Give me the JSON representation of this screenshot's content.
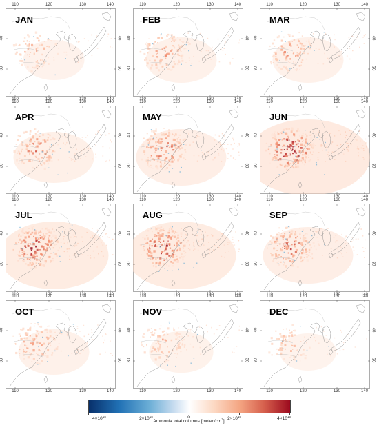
{
  "panels": [
    {
      "month": "JAN",
      "intensity": 0.35
    },
    {
      "month": "FEB",
      "intensity": 0.45
    },
    {
      "month": "MAR",
      "intensity": 0.45
    },
    {
      "month": "APR",
      "intensity": 0.55
    },
    {
      "month": "MAY",
      "intensity": 0.65
    },
    {
      "month": "JUN",
      "intensity": 1.0
    },
    {
      "month": "JUL",
      "intensity": 0.85
    },
    {
      "month": "AUG",
      "intensity": 0.85
    },
    {
      "month": "SEP",
      "intensity": 0.65
    },
    {
      "month": "OCT",
      "intensity": 0.45
    },
    {
      "month": "NOV",
      "intensity": 0.38
    },
    {
      "month": "DEC",
      "intensity": 0.3
    }
  ],
  "longitude_ticks": [
    "110",
    "120",
    "130",
    "140"
  ],
  "latitude_ticks": [
    "30",
    "40"
  ],
  "colorbar": {
    "labels": [
      "−4×10",
      "−2×10",
      "0",
      "2×10",
      "4×10"
    ],
    "exponent": "15",
    "title": "Ammonia total columns [molec/cm",
    "title_sup": "2",
    "title_end": "]",
    "colors": [
      "#08306b",
      "#2171b5",
      "#6baed6",
      "#c6dbef",
      "#ffffff",
      "#fcd9c4",
      "#f4a582",
      "#d6604d",
      "#9c0a1e"
    ]
  }
}
